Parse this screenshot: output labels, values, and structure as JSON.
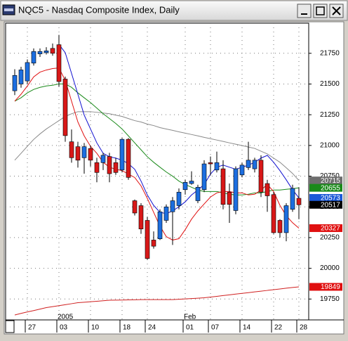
{
  "chart_data": {
    "type": "candlestick",
    "title": "NQC5 - Nasdaq Composite Index, Daily",
    "categories": [
      null,
      null,
      "27",
      null,
      null,
      null,
      null,
      "03",
      null,
      null,
      null,
      null,
      "10",
      null,
      null,
      null,
      null,
      "18",
      null,
      null,
      null,
      "24",
      null,
      null,
      null,
      null,
      null,
      "01",
      null,
      null,
      null,
      "07",
      null,
      null,
      null,
      null,
      "14",
      null,
      null,
      null,
      null,
      "22",
      null,
      null,
      null,
      "28"
    ],
    "period_labels": [
      null,
      null,
      null,
      null,
      null,
      null,
      null,
      "2005",
      null,
      null,
      null,
      null,
      null,
      null,
      null,
      null,
      null,
      null,
      null,
      null,
      null,
      null,
      null,
      null,
      null,
      null,
      null,
      "Feb",
      null,
      null,
      null,
      null,
      null,
      null,
      null,
      null,
      null,
      null,
      null,
      null,
      null,
      null,
      null,
      null,
      null,
      null
    ],
    "open": [
      21445,
      21500,
      21525,
      21670,
      21745,
      21755,
      21790,
      21820,
      21540,
      21030,
      20990,
      20900,
      20975,
      20860,
      20860,
      20910,
      20860,
      20800,
      21050,
      20550,
      20510,
      20390,
      20230,
      20240,
      20390,
      20460,
      20510,
      20640,
      20690,
      20550,
      20640,
      20860,
      20800,
      20810,
      20620,
      20470,
      20760,
      20820,
      20810,
      20880,
      20690,
      20600,
      20390,
      20290,
      20480,
      20570
    ],
    "high": [
      21620,
      21640,
      21700,
      21790,
      21790,
      21800,
      21830,
      21900,
      21560,
      21130,
      21030,
      21020,
      21000,
      20900,
      20940,
      20940,
      20900,
      21060,
      21060,
      20560,
      20530,
      20420,
      20300,
      20480,
      20520,
      20580,
      20650,
      20720,
      20790,
      20680,
      20880,
      20910,
      20950,
      20880,
      20690,
      20830,
      20860,
      21030,
      20900,
      20920,
      20720,
      20620,
      20400,
      20530,
      20680,
      20660
    ],
    "low": [
      21410,
      21470,
      21500,
      21650,
      21720,
      21740,
      21730,
      21480,
      21030,
      20860,
      20820,
      20770,
      20830,
      20700,
      20800,
      20700,
      20760,
      20780,
      20720,
      20430,
      20280,
      20070,
      20160,
      20230,
      20370,
      20190,
      20480,
      20600,
      20680,
      20530,
      20620,
      20760,
      20780,
      20480,
      20370,
      20440,
      20740,
      20800,
      20780,
      20580,
      20460,
      20280,
      20250,
      20220,
      20460,
      20400
    ],
    "close": [
      21570,
      21615,
      21675,
      21765,
      21765,
      21770,
      21750,
      21520,
      21080,
      20900,
      20880,
      20990,
      20880,
      20780,
      20920,
      20770,
      20780,
      21050,
      20740,
      20450,
      20320,
      20080,
      20180,
      20460,
      20500,
      20550,
      20620,
      20700,
      20710,
      20660,
      20850,
      20850,
      20860,
      20520,
      20520,
      20810,
      20840,
      20880,
      20880,
      20620,
      20590,
      20290,
      20290,
      20510,
      20650,
      20517
    ],
    "up_color": "#1c6ee0",
    "down_color": "#d81818",
    "lines": [
      {
        "color": "#d02020",
        "values": [
          19620,
          19633,
          19645,
          19656,
          19668,
          19680,
          19688,
          19696,
          19704,
          19712,
          19720,
          19724,
          19728,
          19732,
          19736,
          19740,
          19741,
          19742,
          19743,
          19744,
          19745,
          19745,
          19745,
          19745,
          19745,
          19745,
          19748,
          19751,
          19754,
          19757,
          19760,
          19766,
          19772,
          19778,
          19784,
          19790,
          19796,
          19802,
          19808,
          19814,
          19820,
          19826,
          19832,
          19838,
          19844,
          19849
        ]
      },
      {
        "color": "#8a8a8a",
        "values": [
          20880,
          20936,
          20993,
          21049,
          21094,
          21134,
          21168,
          21202,
          21236,
          21258,
          21275,
          21275,
          21275,
          21270,
          21264,
          21258,
          21247,
          21236,
          21219,
          21202,
          21191,
          21174,
          21162,
          21145,
          21134,
          21123,
          21111,
          21100,
          21089,
          21078,
          21066,
          21055,
          21044,
          21033,
          21021,
          21010,
          20999,
          20987,
          20976,
          20953,
          20931,
          20897,
          20863,
          20818,
          20772,
          20715
        ]
      },
      {
        "color": "#1a8a1a",
        "values": [
          21360,
          21388,
          21428,
          21456,
          21473,
          21484,
          21490,
          21501,
          21501,
          21473,
          21428,
          21388,
          21349,
          21304,
          21258,
          21219,
          21179,
          21134,
          21078,
          21021,
          20965,
          20908,
          20863,
          20823,
          20784,
          20750,
          20710,
          20682,
          20660,
          20637,
          20625,
          20625,
          20625,
          20614,
          20603,
          20597,
          20597,
          20603,
          20614,
          20614,
          20625,
          20637,
          20637,
          20643,
          20648,
          20655
        ]
      },
      {
        "color": "#e01010",
        "values": [
          21360,
          21417,
          21484,
          21558,
          21597,
          21614,
          21626,
          21631,
          21530,
          21360,
          21191,
          21078,
          20993,
          20936,
          20863,
          20823,
          20806,
          20795,
          20767,
          20739,
          20671,
          20569,
          20456,
          20343,
          20258,
          20230,
          20241,
          20315,
          20400,
          20467,
          20524,
          20580,
          20614,
          20625,
          20625,
          20614,
          20614,
          20597,
          20603,
          20637,
          20682,
          20625,
          20512,
          20428,
          20371,
          20327
        ]
      },
      {
        "color": "#1010d0",
        "values": [
          null,
          null,
          null,
          null,
          null,
          null,
          null,
          21823,
          21755,
          21586,
          21417,
          21247,
          21134,
          21021,
          20936,
          20908,
          20897,
          20880,
          20852,
          20806,
          20710,
          20597,
          20512,
          20456,
          20445,
          20467,
          20501,
          20541,
          20597,
          20637,
          20682,
          20767,
          20823,
          20840,
          20823,
          20806,
          20823,
          20840,
          20863,
          20897,
          20919,
          20863,
          20795,
          20720,
          20640,
          20573
        ]
      }
    ],
    "last_values": [
      {
        "value": 20715,
        "color": "#6e6e6e"
      },
      {
        "value": 20655,
        "color": "#1a8a1a"
      },
      {
        "value": 20573,
        "color": "#1c5ad8"
      },
      {
        "value": 20517,
        "color": "#000000"
      },
      {
        "value": 20327,
        "color": "#e01010"
      },
      {
        "value": 19849,
        "color": "#e01010"
      }
    ],
    "ylim": [
      19580,
      21995
    ],
    "yticks": [
      19750,
      20000,
      20250,
      20500,
      20750,
      21000,
      21250,
      21500,
      21750
    ],
    "grid": true
  }
}
